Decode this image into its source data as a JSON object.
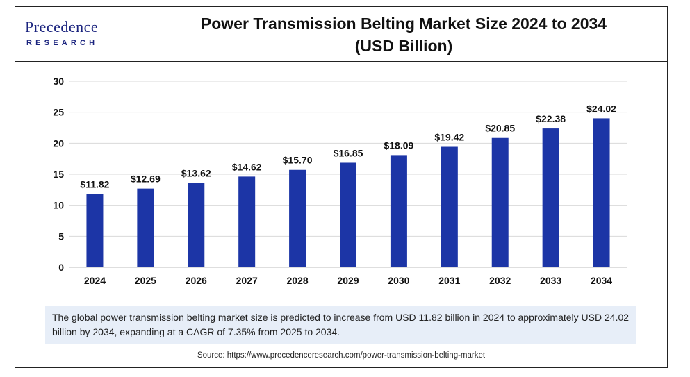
{
  "logo": {
    "name": "Precedence",
    "sub": "RESEARCH"
  },
  "header": {
    "title_line1": "Power Transmission Belting Market Size 2024 to 2034",
    "title_line2": "(USD Billion)"
  },
  "chart_data": {
    "type": "bar",
    "categories": [
      "2024",
      "2025",
      "2026",
      "2027",
      "2028",
      "2029",
      "2030",
      "2031",
      "2032",
      "2033",
      "2034"
    ],
    "values": [
      11.82,
      12.69,
      13.62,
      14.62,
      15.7,
      16.85,
      18.09,
      19.42,
      20.85,
      22.38,
      24.02
    ],
    "data_labels": [
      "$11.82",
      "$12.69",
      "$13.62",
      "$14.62",
      "$15.70",
      "$16.85",
      "$18.09",
      "$19.42",
      "$20.85",
      "$22.38",
      "$24.02"
    ],
    "ylim": [
      0,
      30
    ],
    "yticks": [
      0,
      5,
      10,
      15,
      20,
      25,
      30
    ],
    "grid": true,
    "bar_color": "#1c35a6",
    "title": "Power Transmission Belting Market Size 2024 to 2034 (USD Billion)",
    "xlabel": "",
    "ylabel": ""
  },
  "note": "The global power transmission belting market size is predicted to increase from USD 11.82 billion in 2024 to approximately USD 24.02 billion by 2034, expanding at a CAGR of 7.35% from 2025 to 2034.",
  "source": "Source: https://www.precedenceresearch.com/power-transmission-belting-market"
}
